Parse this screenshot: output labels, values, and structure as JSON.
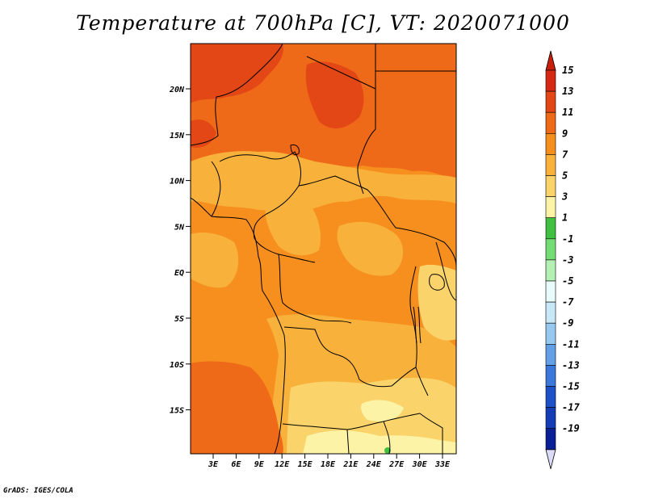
{
  "title": "Temperature at 700hPa [C], VT: 2020071000",
  "credit": "GrADS: IGES/COLA",
  "lat_labels": [
    "20N",
    "15N",
    "10N",
    "5N",
    "EQ",
    "5S",
    "10S",
    "15S"
  ],
  "lon_labels": [
    "3E",
    "6E",
    "9E",
    "12E",
    "15E",
    "18E",
    "21E",
    "24E",
    "27E",
    "30E",
    "33E"
  ],
  "colorbar": {
    "labels": [
      "15",
      "13",
      "11",
      "9",
      "7",
      "5",
      "3",
      "1",
      "-1",
      "-3",
      "-5",
      "-7",
      "-9",
      "-11",
      "-13",
      "-15",
      "-17",
      "-19"
    ],
    "colors": [
      "#d42a14",
      "#e34716",
      "#ef6a18",
      "#f68f1e",
      "#f8b23c",
      "#fad46a",
      "#fdf3a6",
      "#40c040",
      "#74dc74",
      "#b4f0b4",
      "#e8fafa",
      "#c8e8f8",
      "#96c8f0",
      "#64a0e6",
      "#3c78dc",
      "#1e50c8",
      "#143cb4",
      "#0a1e96",
      "#040a6e"
    ],
    "over_color": "#c81e0a",
    "under_color": "#dcdcf8"
  },
  "map_colors": {
    "c7": "#f8b23c",
    "c9": "#f68f1e",
    "c11": "#ef6a18",
    "c13": "#e34716",
    "c5": "#fad46a",
    "c3": "#fdf3a6",
    "c1": "#40c040"
  }
}
